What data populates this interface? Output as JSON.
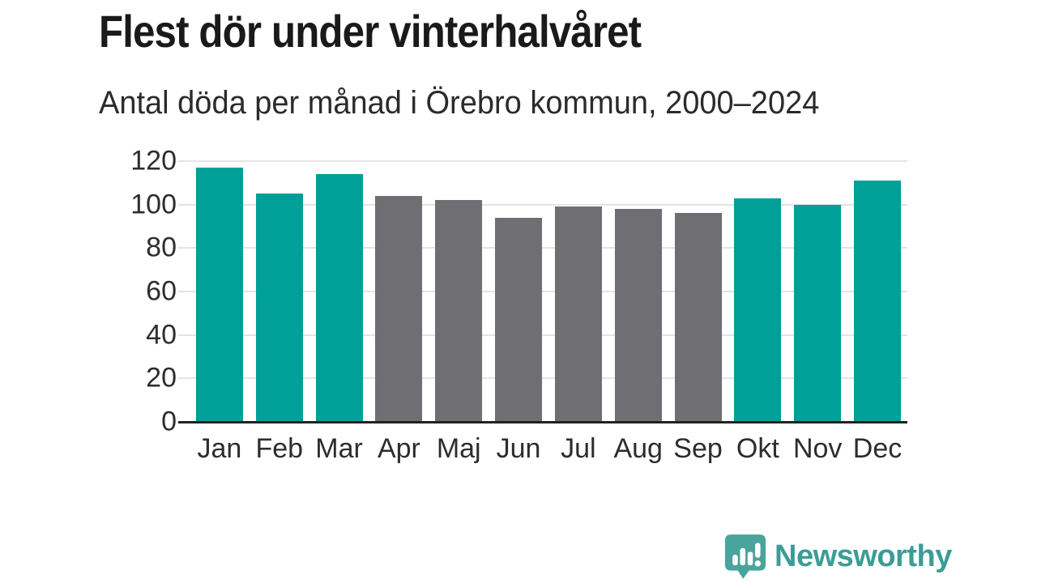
{
  "header": {
    "title": "Flest dör under vinterhalvåret",
    "subtitle": "Antal döda per månad i Örebro kommun, 2000–2024"
  },
  "chart_data": {
    "type": "bar",
    "title": "Flest dör under vinterhalvåret",
    "subtitle": "Antal döda per månad i Örebro kommun, 2000–2024",
    "xlabel": "",
    "ylabel": "",
    "categories": [
      "Jan",
      "Feb",
      "Mar",
      "Apr",
      "Maj",
      "Jun",
      "Jul",
      "Aug",
      "Sep",
      "Okt",
      "Nov",
      "Dec"
    ],
    "values": [
      117,
      105,
      114,
      104,
      102,
      94,
      99,
      98,
      96,
      103,
      100,
      111
    ],
    "color_keys": [
      "winter",
      "winter",
      "winter",
      "summer",
      "summer",
      "summer",
      "summer",
      "summer",
      "summer",
      "winter",
      "winter",
      "winter"
    ],
    "colors": {
      "winter": "#00a098",
      "summer": "#6f6e73",
      "gridline": "#e4e4e4",
      "axis": "#222222",
      "tick_text": "#2d2d2d"
    },
    "yticks": [
      0,
      20,
      40,
      60,
      80,
      100,
      120
    ],
    "ylim": [
      0,
      120
    ],
    "grid": "horizontal only",
    "legend": "none"
  },
  "footer": {
    "brand": "Newsworthy",
    "brand_color": "#3b9d96",
    "logo_icon_color": "#4aa49d",
    "logo_icon": "speech-bubble-with-bar-chart-and-exclamation"
  }
}
